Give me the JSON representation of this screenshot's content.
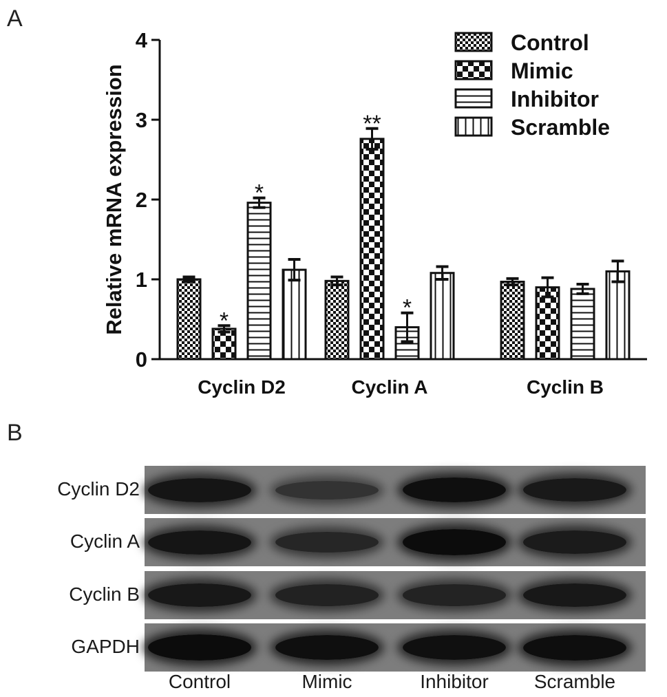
{
  "panel_a_letter": "A",
  "panel_b_letter": "B",
  "chart_data": {
    "type": "bar",
    "title": "",
    "xlabel": "",
    "ylabel": "Relative mRNA expression",
    "ylim": [
      0,
      4
    ],
    "yticks": [
      0,
      1,
      2,
      3,
      4
    ],
    "grid": false,
    "legend_position": "top-right",
    "categories": [
      "Cyclin D2",
      "Cyclin A",
      "Cyclin B"
    ],
    "series": [
      {
        "name": "Control",
        "pattern": "fine-checker",
        "values": [
          1.0,
          0.98,
          0.97
        ],
        "errors": [
          0.03,
          0.05,
          0.04
        ]
      },
      {
        "name": "Mimic",
        "pattern": "coarse-checker",
        "values": [
          0.38,
          2.76,
          0.9
        ],
        "errors": [
          0.04,
          0.13,
          0.12
        ]
      },
      {
        "name": "Inhibitor",
        "pattern": "horizontal",
        "values": [
          1.96,
          0.4,
          0.88
        ],
        "errors": [
          0.06,
          0.18,
          0.06
        ]
      },
      {
        "name": "Scramble",
        "pattern": "vertical",
        "values": [
          1.12,
          1.08,
          1.1
        ],
        "errors": [
          0.13,
          0.08,
          0.13
        ]
      }
    ],
    "annotations": [
      {
        "category": 0,
        "series": 1,
        "text": "*"
      },
      {
        "category": 0,
        "series": 2,
        "text": "*"
      },
      {
        "category": 1,
        "series": 1,
        "text": "**"
      },
      {
        "category": 1,
        "series": 2,
        "text": "*"
      }
    ]
  },
  "blot": {
    "rows": [
      {
        "label": "Cyclin D2",
        "intensities": [
          0.85,
          0.45,
          0.92,
          0.8
        ]
      },
      {
        "label": "Cyclin A",
        "intensities": [
          0.85,
          0.62,
          0.97,
          0.78
        ]
      },
      {
        "label": "Cyclin B",
        "intensities": [
          0.82,
          0.68,
          0.66,
          0.82
        ]
      },
      {
        "label": "GAPDH",
        "intensities": [
          0.97,
          0.92,
          0.9,
          0.95
        ]
      }
    ],
    "lanes": [
      "Control",
      "Mimic",
      "Inhibitor",
      "Scramble"
    ]
  }
}
